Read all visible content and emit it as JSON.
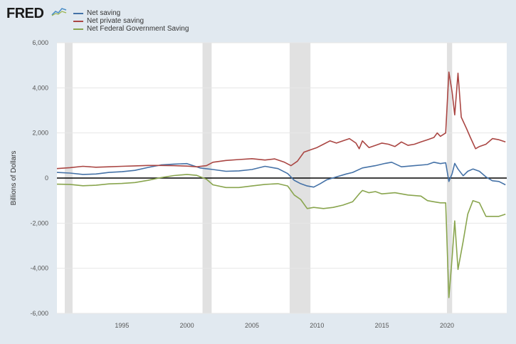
{
  "branding": {
    "logo_text": "FRED"
  },
  "colors": {
    "net_saving": "#4572a7",
    "net_private_saving": "#aa4643",
    "net_federal": "#89a54e",
    "recession": "#e1e1e1",
    "zero_line": "#000000"
  },
  "chart_data": {
    "type": "line",
    "ylabel": "Billions of Dollars",
    "xlabel": "",
    "ylim": [
      -6000,
      6000
    ],
    "xlim": [
      1990.0,
      2024.6
    ],
    "x_ticks": [
      "1995",
      "2000",
      "2005",
      "2010",
      "2015",
      "2020"
    ],
    "y_ticks": [
      "6,000",
      "4,000",
      "2,000",
      "0",
      "-2,000",
      "-4,000",
      "-6,000"
    ],
    "recessions": [
      [
        1990.6,
        1991.2
      ],
      [
        2001.2,
        2001.9
      ],
      [
        2007.9,
        2009.5
      ],
      [
        2020.0,
        2020.4
      ]
    ],
    "series": [
      {
        "name": "Net saving",
        "color": "#4572a7",
        "points": [
          [
            1990.0,
            250
          ],
          [
            1991.0,
            220
          ],
          [
            1992.0,
            160
          ],
          [
            1993.0,
            180
          ],
          [
            1994.0,
            250
          ],
          [
            1995.0,
            280
          ],
          [
            1996.0,
            340
          ],
          [
            1997.0,
            470
          ],
          [
            1998.0,
            580
          ],
          [
            1999.0,
            620
          ],
          [
            2000.0,
            640
          ],
          [
            2001.0,
            450
          ],
          [
            2002.0,
            380
          ],
          [
            2003.0,
            300
          ],
          [
            2004.0,
            320
          ],
          [
            2005.0,
            380
          ],
          [
            2006.0,
            520
          ],
          [
            2007.0,
            420
          ],
          [
            2007.75,
            200
          ],
          [
            2008.25,
            -100
          ],
          [
            2008.75,
            -250
          ],
          [
            2009.25,
            -350
          ],
          [
            2009.75,
            -400
          ],
          [
            2010.25,
            -250
          ],
          [
            2010.75,
            -80
          ],
          [
            2011.5,
            50
          ],
          [
            2012.25,
            180
          ],
          [
            2012.75,
            250
          ],
          [
            2013.5,
            450
          ],
          [
            2014.5,
            550
          ],
          [
            2015.25,
            650
          ],
          [
            2015.75,
            700
          ],
          [
            2016.5,
            500
          ],
          [
            2017.5,
            550
          ],
          [
            2018.5,
            600
          ],
          [
            2019.0,
            700
          ],
          [
            2019.5,
            640
          ],
          [
            2019.9,
            680
          ],
          [
            2020.15,
            -150
          ],
          [
            2020.4,
            200
          ],
          [
            2020.6,
            650
          ],
          [
            2020.85,
            400
          ],
          [
            2021.25,
            100
          ],
          [
            2021.6,
            300
          ],
          [
            2022.0,
            400
          ],
          [
            2022.5,
            300
          ],
          [
            2023.0,
            50
          ],
          [
            2023.5,
            -120
          ],
          [
            2024.0,
            -150
          ],
          [
            2024.5,
            -300
          ]
        ]
      },
      {
        "name": "Net private saving",
        "color": "#aa4643",
        "points": [
          [
            1990.0,
            420
          ],
          [
            1991.0,
            460
          ],
          [
            1992.0,
            520
          ],
          [
            1993.0,
            480
          ],
          [
            1994.0,
            500
          ],
          [
            1995.0,
            520
          ],
          [
            1996.0,
            540
          ],
          [
            1997.0,
            560
          ],
          [
            1998.0,
            560
          ],
          [
            1999.0,
            550
          ],
          [
            2000.0,
            530
          ],
          [
            2000.75,
            500
          ],
          [
            2001.5,
            550
          ],
          [
            2002.0,
            700
          ],
          [
            2003.0,
            780
          ],
          [
            2004.0,
            820
          ],
          [
            2005.0,
            860
          ],
          [
            2006.0,
            800
          ],
          [
            2006.75,
            850
          ],
          [
            2007.5,
            700
          ],
          [
            2008.0,
            550
          ],
          [
            2008.5,
            750
          ],
          [
            2009.0,
            1150
          ],
          [
            2009.5,
            1250
          ],
          [
            2010.0,
            1350
          ],
          [
            2010.5,
            1500
          ],
          [
            2011.0,
            1650
          ],
          [
            2011.5,
            1550
          ],
          [
            2012.0,
            1650
          ],
          [
            2012.5,
            1750
          ],
          [
            2013.0,
            1550
          ],
          [
            2013.25,
            1300
          ],
          [
            2013.5,
            1650
          ],
          [
            2014.0,
            1350
          ],
          [
            2014.5,
            1450
          ],
          [
            2015.0,
            1550
          ],
          [
            2015.5,
            1500
          ],
          [
            2016.0,
            1400
          ],
          [
            2016.5,
            1600
          ],
          [
            2017.0,
            1450
          ],
          [
            2017.5,
            1500
          ],
          [
            2018.0,
            1600
          ],
          [
            2018.5,
            1700
          ],
          [
            2019.0,
            1800
          ],
          [
            2019.25,
            2000
          ],
          [
            2019.5,
            1850
          ],
          [
            2019.9,
            2000
          ],
          [
            2020.15,
            4700
          ],
          [
            2020.4,
            3800
          ],
          [
            2020.6,
            2800
          ],
          [
            2020.85,
            4650
          ],
          [
            2021.1,
            2700
          ],
          [
            2021.5,
            2200
          ],
          [
            2021.8,
            1800
          ],
          [
            2022.2,
            1300
          ],
          [
            2022.5,
            1400
          ],
          [
            2023.0,
            1500
          ],
          [
            2023.5,
            1750
          ],
          [
            2024.0,
            1700
          ],
          [
            2024.5,
            1600
          ]
        ]
      },
      {
        "name": "Net Federal Government Saving",
        "color": "#89a54e",
        "points": [
          [
            1990.0,
            -270
          ],
          [
            1991.0,
            -280
          ],
          [
            1992.0,
            -340
          ],
          [
            1993.0,
            -320
          ],
          [
            1994.0,
            -260
          ],
          [
            1995.0,
            -240
          ],
          [
            1996.0,
            -200
          ],
          [
            1997.0,
            -100
          ],
          [
            1998.0,
            20
          ],
          [
            1999.0,
            110
          ],
          [
            2000.0,
            160
          ],
          [
            2000.75,
            120
          ],
          [
            2001.5,
            -50
          ],
          [
            2002.0,
            -300
          ],
          [
            2003.0,
            -420
          ],
          [
            2004.0,
            -420
          ],
          [
            2005.0,
            -350
          ],
          [
            2006.0,
            -280
          ],
          [
            2007.0,
            -250
          ],
          [
            2007.75,
            -350
          ],
          [
            2008.25,
            -750
          ],
          [
            2008.75,
            -950
          ],
          [
            2009.25,
            -1350
          ],
          [
            2009.75,
            -1300
          ],
          [
            2010.5,
            -1350
          ],
          [
            2011.25,
            -1300
          ],
          [
            2012.0,
            -1200
          ],
          [
            2012.75,
            -1050
          ],
          [
            2013.25,
            -700
          ],
          [
            2013.5,
            -550
          ],
          [
            2014.0,
            -650
          ],
          [
            2014.5,
            -600
          ],
          [
            2015.0,
            -700
          ],
          [
            2016.0,
            -650
          ],
          [
            2017.0,
            -750
          ],
          [
            2018.0,
            -800
          ],
          [
            2018.5,
            -1000
          ],
          [
            2019.0,
            -1050
          ],
          [
            2019.5,
            -1100
          ],
          [
            2019.9,
            -1100
          ],
          [
            2020.15,
            -5300
          ],
          [
            2020.4,
            -3500
          ],
          [
            2020.6,
            -1900
          ],
          [
            2020.85,
            -4050
          ],
          [
            2021.25,
            -2800
          ],
          [
            2021.6,
            -1600
          ],
          [
            2022.0,
            -1000
          ],
          [
            2022.5,
            -1100
          ],
          [
            2023.0,
            -1700
          ],
          [
            2023.5,
            -1700
          ],
          [
            2024.0,
            -1700
          ],
          [
            2024.5,
            -1600
          ]
        ]
      }
    ]
  }
}
